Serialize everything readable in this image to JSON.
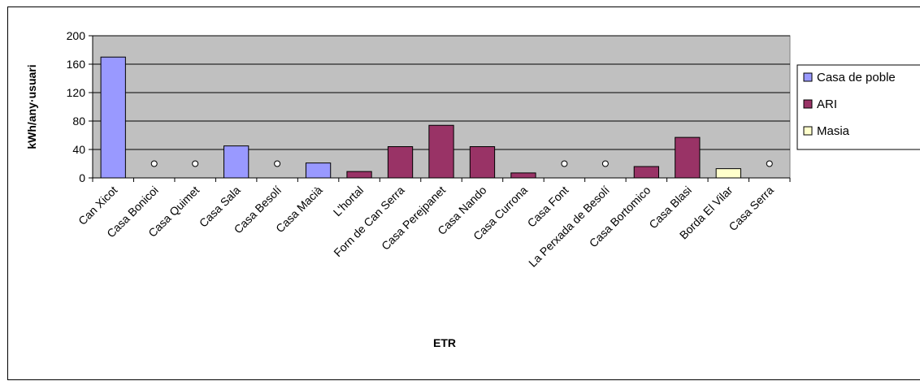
{
  "chart_data": {
    "type": "bar",
    "title": "",
    "xlabel": "ETR",
    "ylabel": "kWh/any·usuari",
    "ylim": [
      0,
      200
    ],
    "yticks": [
      0,
      40,
      80,
      120,
      160,
      200
    ],
    "grid": true,
    "legend_position": "right",
    "categories": [
      "Can Xicot",
      "Casa Bonicoi",
      "Casa Quimet",
      "Casa Sala",
      "Casa Besolí",
      "Casa Macià",
      "L'hortal",
      "Forn de Can Serra",
      "Casa Perejpanet",
      "Casa Nando",
      "Casa Currona",
      "Casa Font",
      "La Perxada de Besolí",
      "Casa Bortomico",
      "Casa Blasi",
      "Borda El Vilar",
      "Casa Serra"
    ],
    "series": [
      {
        "name": "Casa de poble",
        "color": "#9999ff",
        "values": [
          170,
          null,
          null,
          45,
          null,
          21,
          null,
          null,
          null,
          null,
          null,
          null,
          null,
          null,
          null,
          null,
          null
        ]
      },
      {
        "name": "ARI",
        "color": "#993366",
        "values": [
          null,
          null,
          null,
          null,
          null,
          null,
          9,
          44,
          74,
          44,
          7,
          null,
          null,
          16,
          57,
          null,
          null
        ]
      },
      {
        "name": "Masia",
        "color": "#ffffcc",
        "values": [
          null,
          null,
          null,
          null,
          null,
          null,
          null,
          null,
          null,
          null,
          null,
          null,
          null,
          null,
          null,
          13,
          null
        ]
      }
    ],
    "markers": {
      "shape": "circle",
      "value": 20,
      "categories": [
        "Casa Bonicoi",
        "Casa Quimet",
        "Casa Besolí",
        "Casa Font",
        "La Perxada de Besolí",
        "Casa Serra"
      ]
    }
  }
}
